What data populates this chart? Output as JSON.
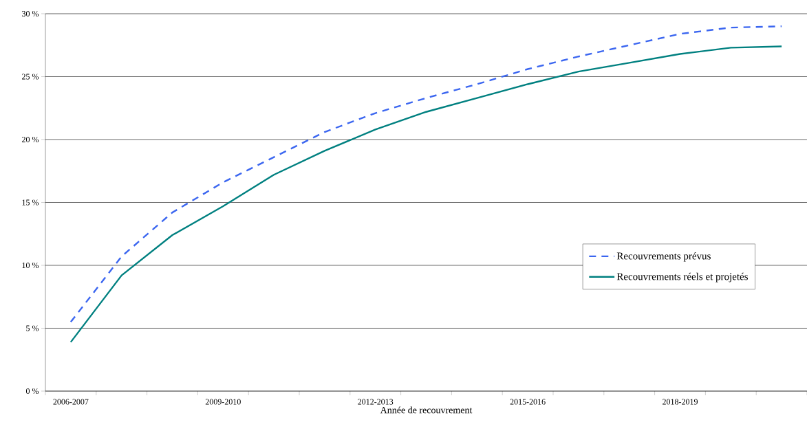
{
  "chart_data": {
    "type": "line",
    "xlabel": "Année de recouvrement",
    "categories": [
      "2006-2007",
      null,
      null,
      "2009-2010",
      null,
      null,
      "2012-2013",
      null,
      null,
      "2015-2016",
      null,
      null,
      "2018-2019",
      null,
      null
    ],
    "series": [
      {
        "name": "Recouvrements prévus",
        "color": "#3b66f0",
        "line_style": "dashed",
        "values": [
          5.5,
          10.7,
          14.2,
          16.6,
          18.6,
          20.6,
          22.1,
          23.3,
          24.4,
          25.6,
          26.6,
          27.5,
          28.4,
          28.9,
          29.0
        ]
      },
      {
        "name": "Recouvrements réels et projetés",
        "color": "#008080",
        "line_style": "solid",
        "values": [
          3.9,
          9.2,
          12.4,
          14.7,
          17.2,
          19.1,
          20.8,
          22.2,
          23.3,
          24.4,
          25.4,
          26.1,
          26.8,
          27.3,
          27.4
        ]
      }
    ],
    "ylim": [
      0,
      30
    ],
    "yticks": [
      {
        "value": 0,
        "label": "0 %"
      },
      {
        "value": 5,
        "label": "5 %"
      },
      {
        "value": 10,
        "label": "10 %"
      },
      {
        "value": 15,
        "label": "15 %"
      },
      {
        "value": 20,
        "label": "20 %"
      },
      {
        "value": 25,
        "label": "25 %"
      },
      {
        "value": 30,
        "label": "30 %"
      }
    ],
    "grid": "y",
    "legend": "right",
    "marker": "none"
  }
}
